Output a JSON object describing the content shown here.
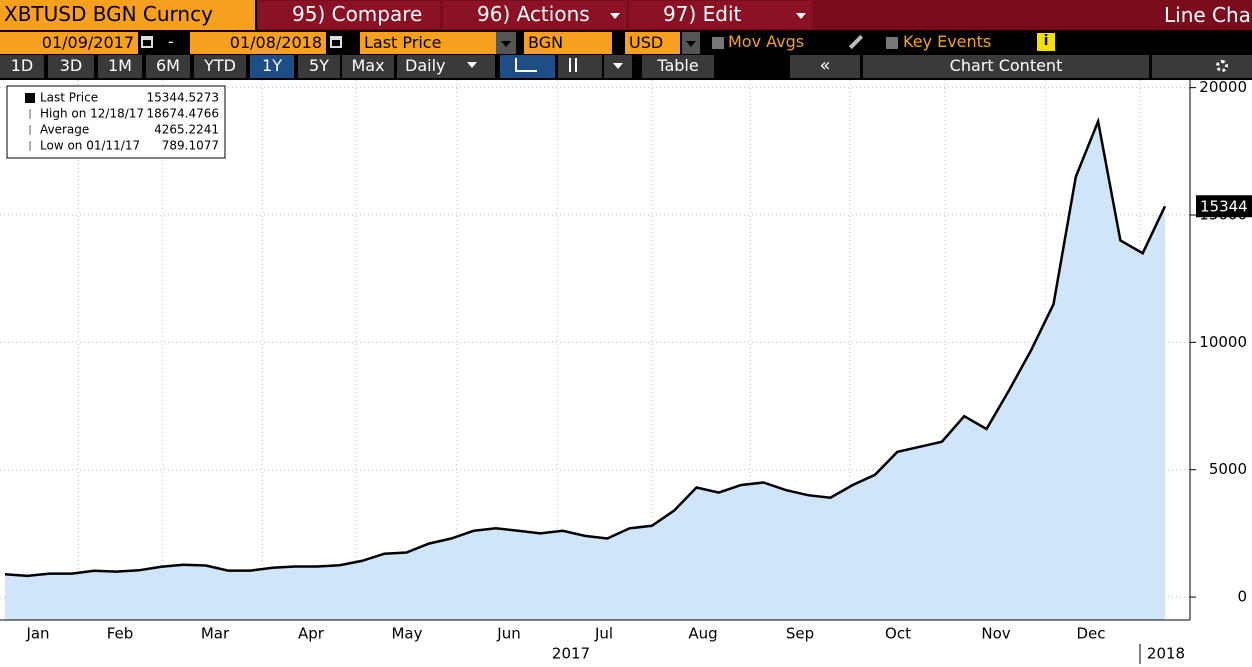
{
  "header": {
    "ticker": "XBTUSD BGN Curncy",
    "menus": [
      "95) Compare",
      "96) Actions",
      "97) Edit"
    ],
    "view": "Line Cha"
  },
  "controls": {
    "start_date": "01/09/2017",
    "separator": "-",
    "end_date": "01/08/2018",
    "field": "Last Price",
    "source": "BGN",
    "currency": "USD",
    "mov_avgs": "Mov Avgs",
    "key_events": "Key Events",
    "info": "i"
  },
  "toolbar": {
    "periods": [
      "1D",
      "3D",
      "1M",
      "6M",
      "YTD",
      "1Y",
      "5Y",
      "Max"
    ],
    "selected_period": "1Y",
    "frequency": "Daily",
    "table": "Table",
    "collapse": "«",
    "chart_content": "Chart Content"
  },
  "chart_data": {
    "type": "line",
    "legend": [
      {
        "label": "Last Price",
        "value": 15344.5273
      },
      {
        "label": "High on 12/18/17",
        "value": 18674.4766
      },
      {
        "label": "Average",
        "value": 4265.2241
      },
      {
        "label": "Low on 01/11/17",
        "value": 789.1077
      }
    ],
    "months": [
      "Jan",
      "Feb",
      "Mar",
      "Apr",
      "May",
      "Jun",
      "Jul",
      "Aug",
      "Sep",
      "Oct",
      "Nov",
      "Dec"
    ],
    "years": [
      "2017",
      "2018"
    ],
    "series": [
      {
        "name": "Last Price",
        "color": "#000000",
        "fill": "#cfe5fa",
        "values": [
          900,
          830,
          920,
          920,
          1030,
          1000,
          1050,
          1190,
          1270,
          1240,
          1040,
          1040,
          1150,
          1200,
          1200,
          1250,
          1420,
          1700,
          1750,
          2100,
          2300,
          2600,
          2700,
          2600,
          2500,
          2600,
          2400,
          2300,
          2700,
          2800,
          3400,
          4300,
          4100,
          4400,
          4500,
          4200,
          4000,
          3900,
          4400,
          4800,
          5700,
          5900,
          6100,
          7100,
          6600,
          8100,
          9700,
          11500,
          16500,
          18674,
          14000,
          13500,
          15344
        ]
      }
    ],
    "last_price_label": "15344",
    "ylim": [
      -900,
      20300
    ],
    "yticks": [
      0,
      5000,
      10000,
      15000,
      20000
    ],
    "grid": true
  }
}
